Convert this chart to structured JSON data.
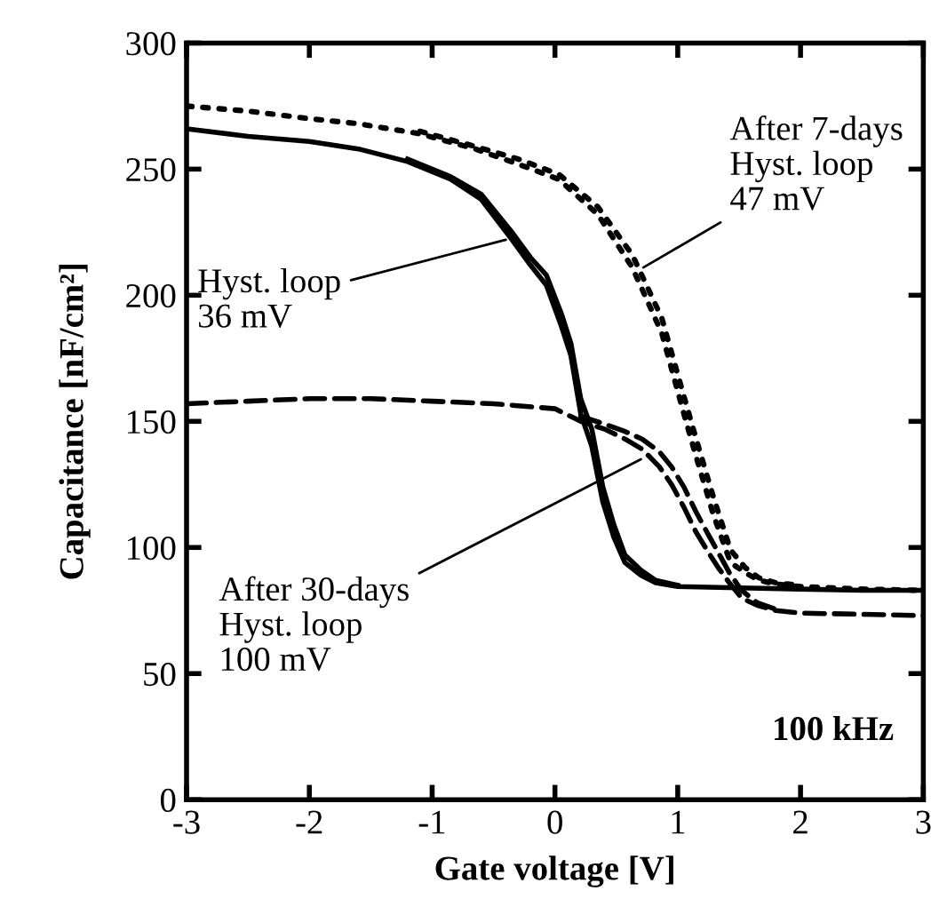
{
  "chart_data": {
    "type": "line",
    "xlabel": "Gate voltage [V]",
    "ylabel": "Capacitance [nF/cm²]",
    "xlim": [
      -3,
      3
    ],
    "ylim": [
      0,
      300
    ],
    "xticks": [
      -3,
      -2,
      -1,
      0,
      1,
      2,
      3
    ],
    "yticks": [
      0,
      50,
      100,
      150,
      200,
      250,
      300
    ],
    "grid": false,
    "legend": false,
    "marker": "none",
    "series": [
      {
        "color": "#000000",
        "line_style": "solid",
        "x": [
          -3,
          -2.5,
          -2,
          -1.6,
          -1.2,
          -0.85,
          -0.6,
          -0.35,
          -0.2,
          -0.07,
          0.05,
          0.13,
          0.21,
          0.3,
          0.39,
          0.48,
          0.57,
          0.7,
          0.82,
          1,
          1.5,
          2,
          2.5,
          3
        ],
        "values": [
          266,
          263,
          261,
          258,
          253,
          246,
          238,
          222,
          212,
          204,
          188,
          176,
          153,
          140,
          118,
          104,
          94,
          89,
          86,
          84.5,
          84,
          83.5,
          83,
          83
        ]
      },
      {
        "color": "#000000",
        "line_style": "solid",
        "x": [
          -1.2,
          -0.85,
          -0.6,
          -0.35,
          -0.2,
          -0.07,
          0.05,
          0.13,
          0.21,
          0.3,
          0.39,
          0.48,
          0.57,
          0.7,
          0.82,
          1
        ],
        "values": [
          254,
          247,
          240,
          225,
          215,
          208,
          193,
          181,
          159,
          147,
          124,
          109,
          97,
          91,
          87,
          85
        ]
      },
      {
        "color": "#000000",
        "line_style": "dotted",
        "x": [
          -3,
          -2.5,
          -2,
          -1.6,
          -1.1,
          -0.65,
          -0.3,
          0.03,
          0.35,
          0.63,
          0.87,
          1.05,
          1.15,
          1.29,
          1.43,
          1.55,
          1.66,
          1.8,
          2,
          2.5,
          3
        ],
        "values": [
          275,
          273,
          270,
          268,
          264,
          258,
          252,
          246,
          232,
          211,
          185,
          153,
          136,
          113,
          94,
          90,
          87,
          85.5,
          84.5,
          83.5,
          83
        ]
      },
      {
        "color": "#000000",
        "line_style": "dotted",
        "x": [
          -1.1,
          -0.65,
          -0.3,
          0.03,
          0.35,
          0.63,
          0.87,
          1.05,
          1.15,
          1.29,
          1.43,
          1.55,
          1.66,
          1.8,
          2
        ],
        "values": [
          265,
          259,
          254,
          248,
          235,
          216,
          191,
          160,
          143,
          120,
          99,
          92,
          88,
          86,
          85
        ]
      },
      {
        "color": "#000000",
        "line_style": "dashed",
        "x": [
          -3,
          -2.5,
          -2,
          -1.5,
          -1,
          -0.5,
          0,
          0.21,
          0.4,
          0.57,
          0.71,
          0.85,
          0.95,
          1.05,
          1.15,
          1.25,
          1.33,
          1.42,
          1.52,
          1.65,
          1.8,
          2,
          2.5,
          3
        ],
        "values": [
          157,
          158,
          159,
          159,
          158,
          157,
          155,
          150,
          147,
          143,
          139,
          132,
          125,
          116,
          106,
          98,
          92,
          86,
          80,
          77,
          75,
          74,
          73.5,
          73
        ]
      },
      {
        "color": "#000000",
        "line_style": "dashed",
        "x": [
          0.21,
          0.4,
          0.57,
          0.71,
          0.85,
          0.95,
          1.05,
          1.15,
          1.25,
          1.33,
          1.42,
          1.52,
          1.65,
          1.8
        ],
        "values": [
          152,
          149,
          146,
          143,
          138,
          132,
          124,
          114,
          105,
          98,
          90,
          83,
          78,
          75.5
        ]
      }
    ],
    "annotations": [
      {
        "text": "Hyst. loop\n36 mV",
        "x": -0.4,
        "y": 222
      },
      {
        "text": "After 7-days\nHyst. loop\n47 mV",
        "x": 0.72,
        "y": 211
      },
      {
        "text": "After 30-days\nHyst. loop\n100 mV",
        "x": 0.7,
        "y": 135
      },
      "100 kHz"
    ]
  }
}
